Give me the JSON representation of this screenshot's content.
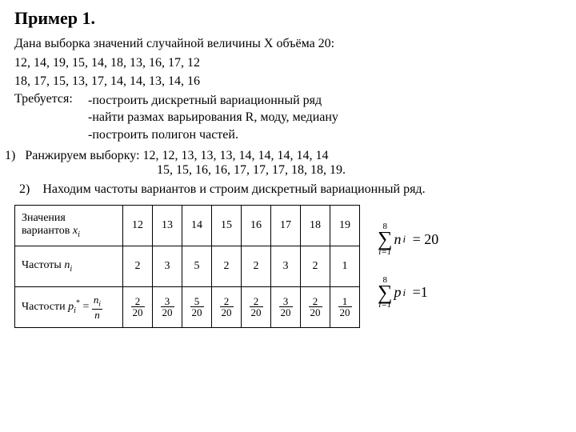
{
  "title": "Пример 1.",
  "intro": "Дана выборка значений случайной величины Х объёма 20:",
  "sample_line1": "12, 14, 19, 15, 14, 18, 13, 16, 17, 12",
  "sample_line2": "18, 17, 15, 13, 17, 14, 14, 13, 14, 16",
  "req_label": "Требуется:",
  "req_items": [
    "-построить дискретный вариационный ряд",
    "-найти размах варьирования R, моду, медиану",
    "-построить полигон частей."
  ],
  "step1_prefix": "1)",
  "step1_text": "Ранжируем выборку: 12, 12, 13, 13, 13, 14, 14, 14, 14, 14",
  "step1_line2": "15, 15, 16, 16, 17, 17, 17, 18, 18, 19.",
  "step2_prefix": "2)",
  "step2_text": "Находим частоты вариантов и строим дискретный вариационный ряд.",
  "table": {
    "row_headers": {
      "values": "Значения вариантов",
      "values_symbol": "x",
      "freq": "Частоты",
      "freq_symbol": "n",
      "relfreq": "Частости",
      "relfreq_symbol": "p"
    },
    "x": [
      "12",
      "13",
      "14",
      "15",
      "16",
      "17",
      "18",
      "19"
    ],
    "n": [
      "2",
      "3",
      "5",
      "2",
      "2",
      "3",
      "2",
      "1"
    ],
    "p_num": [
      "2",
      "3",
      "5",
      "2",
      "2",
      "3",
      "2",
      "1"
    ],
    "p_den": [
      "20",
      "20",
      "20",
      "20",
      "20",
      "20",
      "20",
      "20"
    ]
  },
  "sums": {
    "n": {
      "upper": "8",
      "lower": "i=1",
      "term_sym": "n",
      "eq": "= 20"
    },
    "p": {
      "upper": "8",
      "lower": "i=1",
      "term_sym": "p",
      "eq": "=1"
    }
  }
}
